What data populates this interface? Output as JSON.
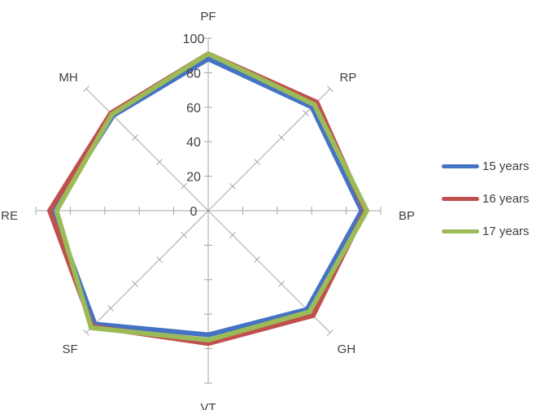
{
  "chart_data": {
    "type": "radar",
    "categories": [
      "PF",
      "RP",
      "BP",
      "GH",
      "VT",
      "SF",
      "RE",
      "MH"
    ],
    "rlim": [
      0,
      100
    ],
    "rticks": [
      "0",
      "20",
      "40",
      "60",
      "80",
      "100"
    ],
    "legend_position": "right",
    "series": [
      {
        "name": "15 years",
        "color": "#4472c4",
        "values": [
          88,
          85,
          89,
          81,
          72,
          93,
          90,
          78
        ]
      },
      {
        "name": "16 years",
        "color": "#c0504d",
        "values": [
          91,
          89,
          91,
          86,
          77,
          95,
          92,
          80
        ]
      },
      {
        "name": "17 years",
        "color": "#9bbb59",
        "values": [
          91,
          87,
          92,
          83,
          75,
          96,
          88,
          79
        ]
      }
    ]
  }
}
